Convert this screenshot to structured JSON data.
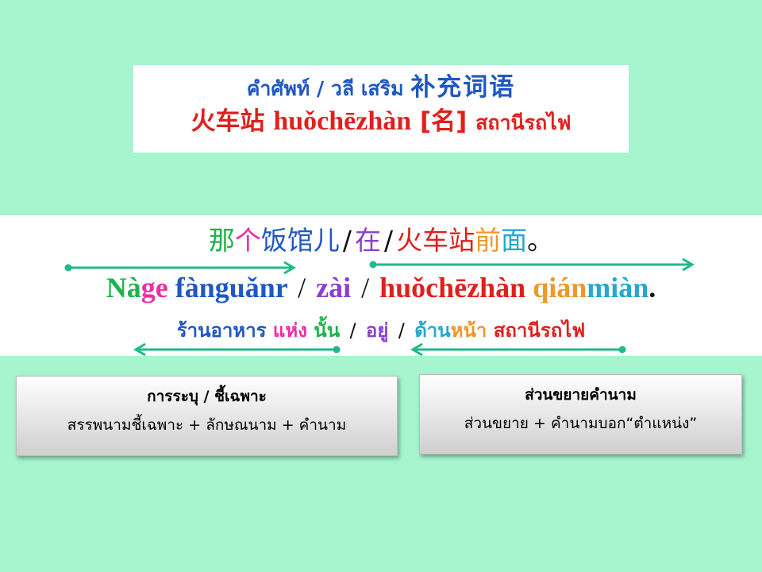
{
  "vocab": {
    "label_th": "คำศัพท์ / วลี เสริม",
    "label_cn": "补充词语",
    "word_cn": "火车站",
    "word_pinyin": "huǒchēzhàn",
    "word_pos": "[名]",
    "word_th": "สถานีรถไฟ"
  },
  "sentence": {
    "chinese": [
      {
        "text": "那",
        "color": "#1db34a"
      },
      {
        "text": "个",
        "color": "#ee2ea6"
      },
      {
        "text": "饭馆儿",
        "color": "#1f57c4"
      },
      {
        "text": "/",
        "color": "#111111"
      },
      {
        "text": "在",
        "color": "#8a3fd1"
      },
      {
        "text": "/",
        "color": "#111111"
      },
      {
        "text": "火车站",
        "color": "#e0201e"
      },
      {
        "text": "前",
        "color": "#f0962a"
      },
      {
        "text": "面",
        "color": "#25a8cf"
      },
      {
        "text": "。",
        "color": "#111111"
      }
    ],
    "pinyin": [
      {
        "text": "Nà",
        "color": "#1db34a"
      },
      {
        "text": "ge",
        "color": "#ee2ea6"
      },
      {
        "text": "fànguǎnr",
        "color": "#1f57c4"
      },
      {
        "text": "/",
        "color": "#111111"
      },
      {
        "text": "zài",
        "color": "#8a3fd1"
      },
      {
        "text": "/",
        "color": "#111111"
      },
      {
        "text": "huǒchēzhàn",
        "color": "#e0201e"
      },
      {
        "text": "qián",
        "color": "#f0962a"
      },
      {
        "text": "miàn",
        "color": "#25a8cf"
      },
      {
        "text": ".",
        "color": "#111111"
      }
    ],
    "thai": [
      {
        "text": "ร้านอาหาร",
        "color": "#1f57c4"
      },
      {
        "text": "แห่ง",
        "color": "#ee2ea6"
      },
      {
        "text": "นั้น",
        "color": "#1db34a"
      },
      {
        "text": "/",
        "color": "#111111"
      },
      {
        "text": "อยู่",
        "color": "#8a3fd1"
      },
      {
        "text": "/",
        "color": "#111111"
      },
      {
        "text": "ด้าน",
        "color": "#25a8cf"
      },
      {
        "text": "หน้า",
        "color": "#f0962a"
      },
      {
        "text": "สถานีรถไฟ",
        "color": "#e0201e"
      }
    ]
  },
  "arrow_color": "#1fb98a",
  "cards": {
    "left": {
      "title": "การระบุ / ชี้เฉพาะ",
      "body": "สรรพนามชี้เฉพาะ + ลักษณนาม + คำนาม"
    },
    "right": {
      "title": "ส่วนขยายคำนาม",
      "body": "ส่วนขยาย + คำนามบอก“ตำแหน่ง”"
    }
  }
}
